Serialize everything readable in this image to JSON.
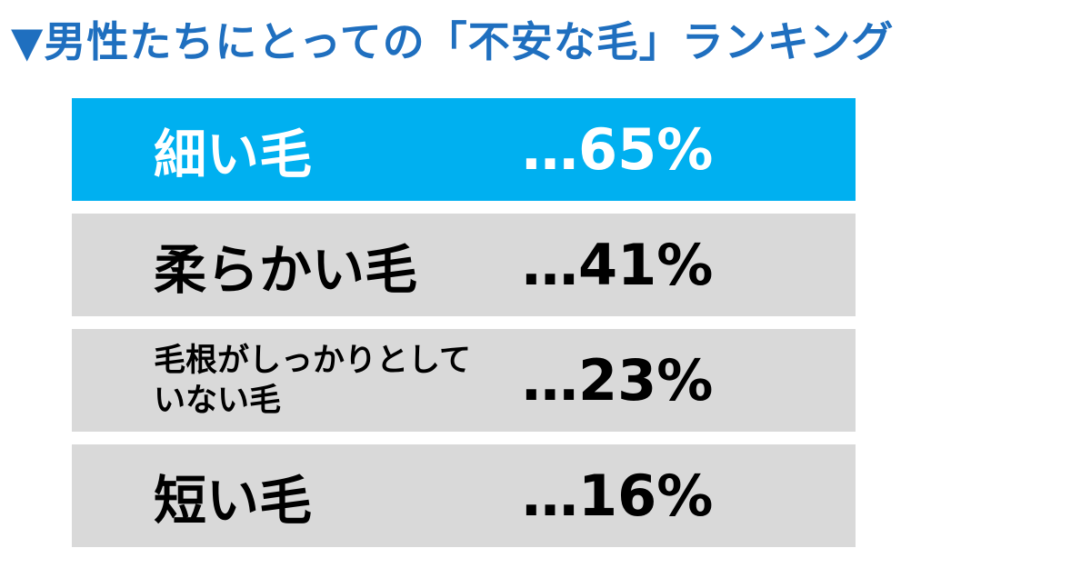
{
  "title": "▼男性たちにとっての「不安な毛」ランキング",
  "colors": {
    "title": "#1f6fbf",
    "highlight_bg": "#00b0f0",
    "highlight_text": "#ffffff",
    "row_bg": "#d9d9d9",
    "row_text": "#000000"
  },
  "rows": [
    {
      "label": "細い毛",
      "value": "…65%"
    },
    {
      "label": "柔らかい毛",
      "value": "…41%"
    },
    {
      "label": "毛根がしっかりとしていない毛",
      "value": "…23%"
    },
    {
      "label": "短い毛",
      "value": "…16%"
    }
  ],
  "chart_data": {
    "type": "table",
    "title": "▼男性たちにとっての「不安な毛」ランキング",
    "categories": [
      "細い毛",
      "柔らかい毛",
      "毛根がしっかりとしていない毛",
      "短い毛"
    ],
    "values": [
      65,
      41,
      23,
      16
    ],
    "unit": "%"
  }
}
